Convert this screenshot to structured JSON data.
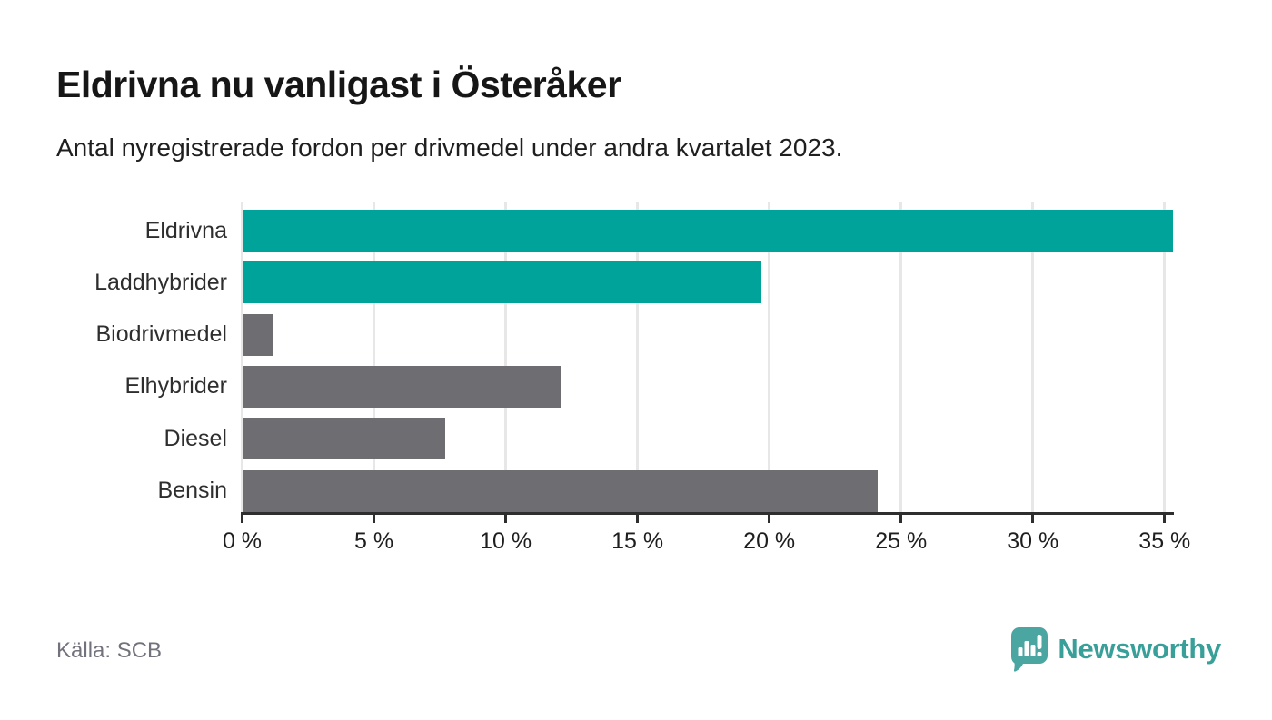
{
  "header": {
    "title": "Eldrivna nu vanligast i Österåker",
    "subtitle": "Antal nyregistrerade fordon per drivmedel under andra kvartalet 2023."
  },
  "footer": {
    "source": "Källa: SCB",
    "brand": "Newsworthy"
  },
  "colors": {
    "highlight_teal": "#00a39a",
    "muted_gray": "#6d6d72",
    "brand_teal": "#399f99",
    "logo_bubble_teal": "#4ba6a1",
    "gridline": "#e7e7e7",
    "axis": "#2e2e2e",
    "source_text": "#72727c"
  },
  "chart_data": {
    "type": "bar",
    "orientation": "horizontal",
    "title": "Eldrivna nu vanligast i Österåker",
    "subtitle": "Antal nyregistrerade fordon per drivmedel under andra kvartalet 2023.",
    "xlabel": "",
    "ylabel": "",
    "categories": [
      "Eldrivna",
      "Laddhybrider",
      "Biodrivmedel",
      "Elhybrider",
      "Diesel",
      "Bensin"
    ],
    "values": [
      35.3,
      19.7,
      1.2,
      12.1,
      7.7,
      24.1
    ],
    "unit": "%",
    "bar_colors": [
      "#00a39a",
      "#00a39a",
      "#6d6d72",
      "#6d6d72",
      "#6d6d72",
      "#6d6d72"
    ],
    "xlim": [
      0,
      35.3
    ],
    "x_ticks": [
      0,
      5,
      10,
      15,
      20,
      25,
      30,
      35
    ],
    "x_tick_labels": [
      "0 %",
      "5 %",
      "10 %",
      "15 %",
      "20 %",
      "25 %",
      "30 %",
      "35 %"
    ],
    "grid": true,
    "legend": false
  }
}
